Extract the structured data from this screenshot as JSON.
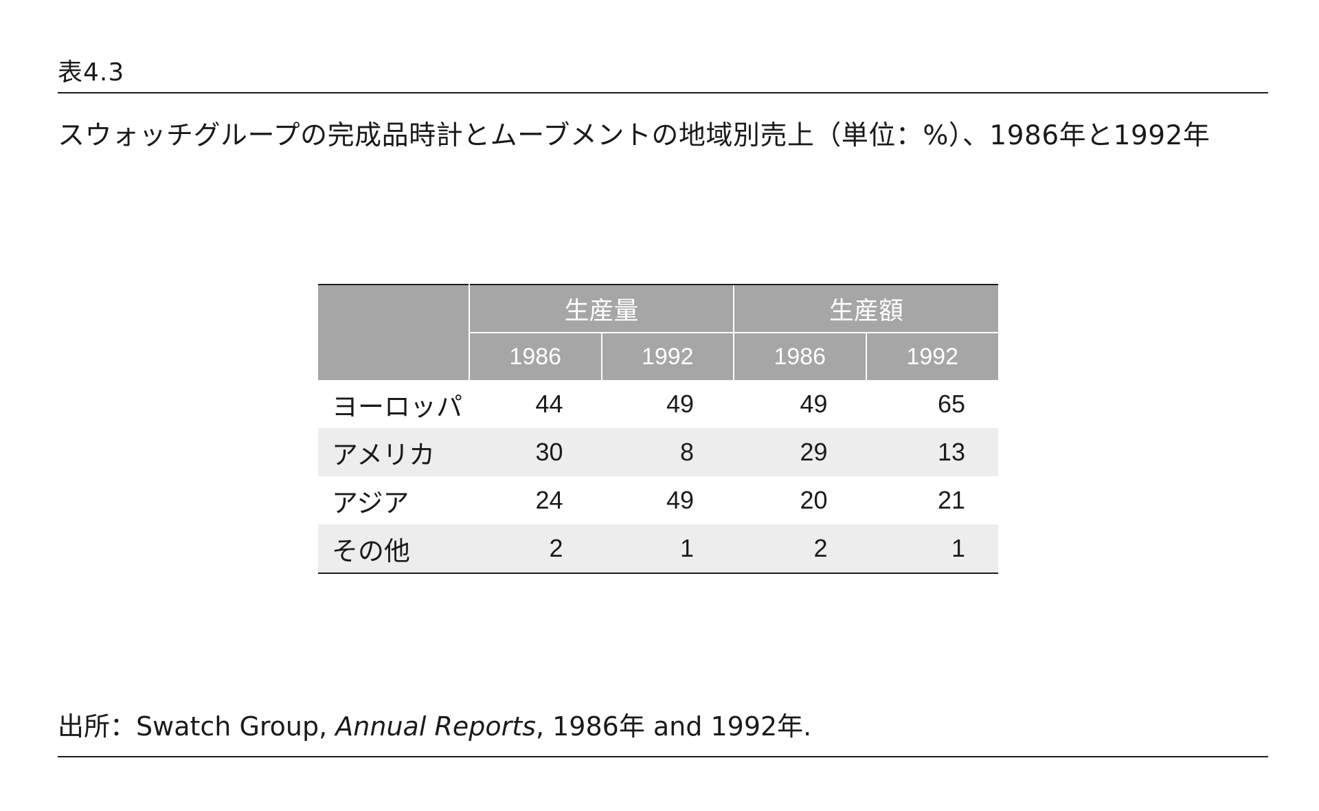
{
  "table_label": "表4.3",
  "caption": "スウォッチグループの完成品時計とムーブメントの地域別売上（単位：%）、1986年と1992年",
  "table": {
    "group_headers": [
      "生産量",
      "生産額"
    ],
    "year_headers": [
      "1986",
      "1992",
      "1986",
      "1992"
    ],
    "rows": [
      {
        "region": "ヨーロッパ",
        "values": [
          "44",
          "49",
          "49",
          "65"
        ]
      },
      {
        "region": "アメリカ",
        "values": [
          "30",
          "8",
          "29",
          "13"
        ]
      },
      {
        "region": "アジア",
        "values": [
          "24",
          "49",
          "20",
          "21"
        ]
      },
      {
        "region": "その他",
        "values": [
          "2",
          "1",
          "2",
          "1"
        ]
      }
    ]
  },
  "source": {
    "prefix": "出所：Swatch Group, ",
    "title": "Annual Reports",
    "suffix": ", 1986年 and 1992年."
  }
}
